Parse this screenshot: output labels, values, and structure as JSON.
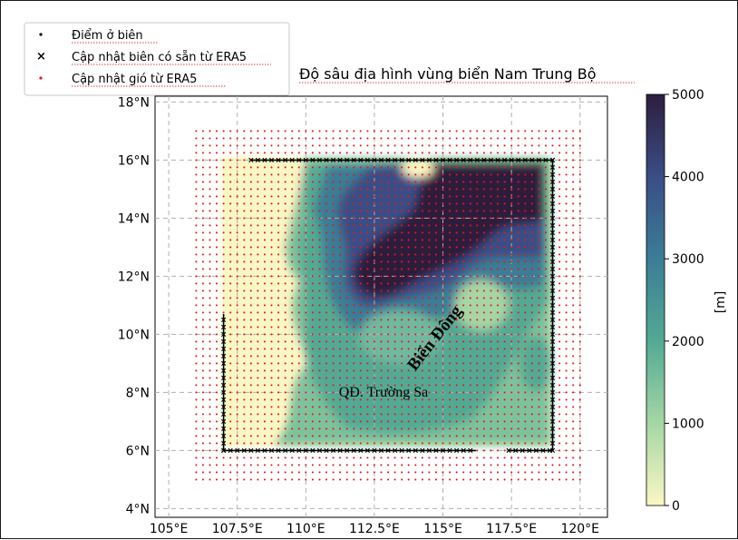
{
  "title": "Độ sâu địa hình vùng biển Nam Trung Bộ",
  "legend": {
    "items": [
      {
        "label": "Điểm ở biên",
        "marker": "dot",
        "color": "#000000"
      },
      {
        "label": "Cập nhật biên có sẵn từ ERA5",
        "marker": "x",
        "color": "#000000"
      },
      {
        "label": "Cập nhật gió từ ERA5",
        "marker": "dot",
        "color": "#e31a1c"
      }
    ]
  },
  "map_labels": {
    "sea_name": "Biển Đông",
    "archipelago": "QĐ. Trường Sa"
  },
  "axes": {
    "lon_ticks": [
      "105°E",
      "107.5°E",
      "110°E",
      "112.5°E",
      "115°E",
      "117.5°E",
      "120°E"
    ],
    "lat_ticks": [
      "4°N",
      "6°N",
      "8°N",
      "10°N",
      "12°N",
      "14°N",
      "16°N",
      "18°N"
    ],
    "lon_range": [
      104.5,
      121
    ],
    "lat_range": [
      3.7,
      18.2
    ],
    "grid": "dashed"
  },
  "colorbar": {
    "label": "[m]",
    "ticks": [
      "0",
      "1000",
      "2000",
      "3000",
      "4000",
      "5000"
    ],
    "range": [
      0,
      5000
    ],
    "colors": [
      "#fbf7c4",
      "#a6d6a5",
      "#52aa94",
      "#3b7d96",
      "#3b4d86",
      "#2d1e3e"
    ]
  },
  "chart_data": {
    "type": "map",
    "title": "Độ sâu địa hình vùng biển Nam Trung Bộ",
    "wind_grid": {
      "lon": [
        106,
        120
      ],
      "lat": [
        5,
        17
      ],
      "step": 0.25,
      "color": "#e31a1c"
    },
    "boundary_era5": {
      "north": {
        "lat": 16,
        "lon": [
          108,
          119
        ]
      },
      "east": {
        "lon": 119,
        "lat": [
          6,
          16
        ]
      },
      "south": [
        {
          "lat": 6,
          "lon": [
            107,
            116.2
          ]
        },
        {
          "lat": 6,
          "lon": [
            117.4,
            119
          ]
        }
      ],
      "west": {
        "lon": 107,
        "lat": [
          6,
          10.7
        ]
      }
    }
  }
}
